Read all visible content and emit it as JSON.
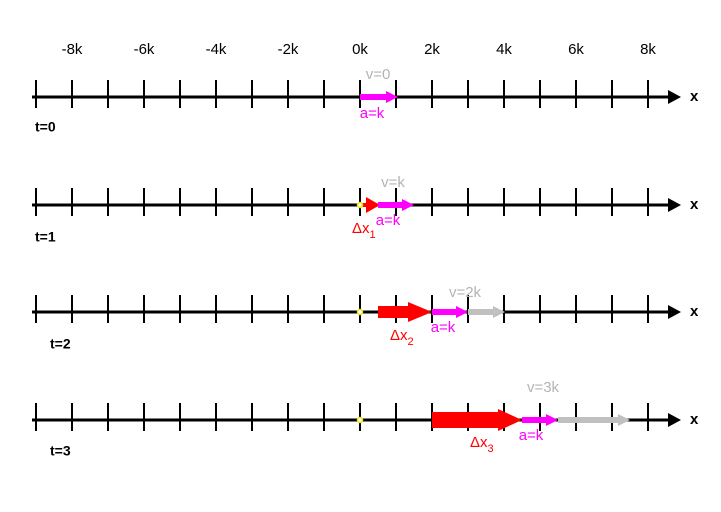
{
  "axis_labels": [
    "-8k",
    "-6k",
    "-4k",
    "-2k",
    "0k",
    "2k",
    "4k",
    "6k",
    "8k"
  ],
  "rows": [
    {
      "time": "t=0",
      "axis_name": "x",
      "velocity": "v=0",
      "acceleration": "a=k"
    },
    {
      "time": "t=1",
      "axis_name": "x",
      "velocity": "v=k",
      "acceleration": "a=k",
      "displacement": {
        "symbol": "Δx",
        "subscript": "1"
      }
    },
    {
      "time": "t=2",
      "axis_name": "x",
      "velocity": "v=2k",
      "acceleration": "a=k",
      "displacement": {
        "symbol": "Δx",
        "subscript": "2"
      }
    },
    {
      "time": "t=3",
      "axis_name": "x",
      "velocity": "v=3k",
      "acceleration": "a=k",
      "displacement": {
        "symbol": "Δx",
        "subscript": "3"
      }
    }
  ]
}
